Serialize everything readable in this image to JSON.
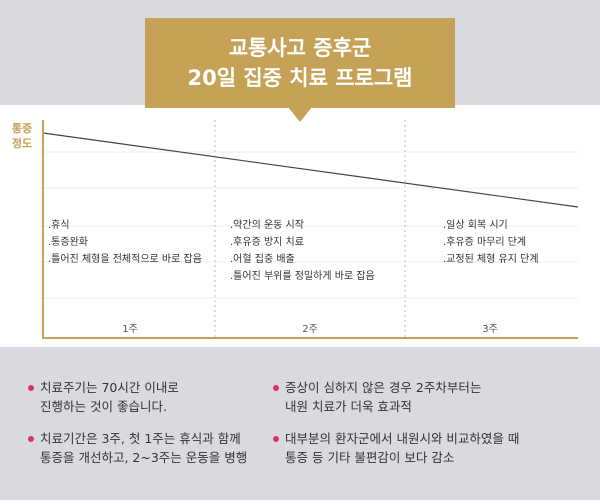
{
  "title": [
    "교통사고 증후군",
    "20일 집중 치료 프로그램"
  ],
  "y_axis_label": [
    "통증",
    "정도"
  ],
  "phases": [
    {
      "label": "1주",
      "items": [
        ".휴식",
        ".통증완화",
        ".틀어진 체형을 전체적으로 바로 잡음"
      ]
    },
    {
      "label": "2주",
      "items": [
        ".약간의 운동 시작",
        ".후유증 방지 치료",
        ".어혈 집중 배출",
        ".틀어진 부위를 정밀하게 바로 잡음"
      ]
    },
    {
      "label": "3주",
      "items": [
        ".일상 회복 시기",
        ".후유증 마무리 단계",
        ".교정된 체형 유지 단계"
      ]
    }
  ],
  "notes": [
    [
      "치료주기는 70시간 이내로",
      "진행하는 것이 좋습니다."
    ],
    [
      "치료기간은 3주, 첫 1주는 휴식과 함께",
      "통증을 개선하고, 2~3주는 운동을 병행"
    ],
    [
      "증상이 심하지 않은 경우 2주차부터는",
      "내원 치료가 더욱 효과적"
    ],
    [
      "대부분의 환자군에서 내원시와 비교하였을 때",
      "통증 등 기타 불편감이 보다 감소"
    ]
  ]
}
